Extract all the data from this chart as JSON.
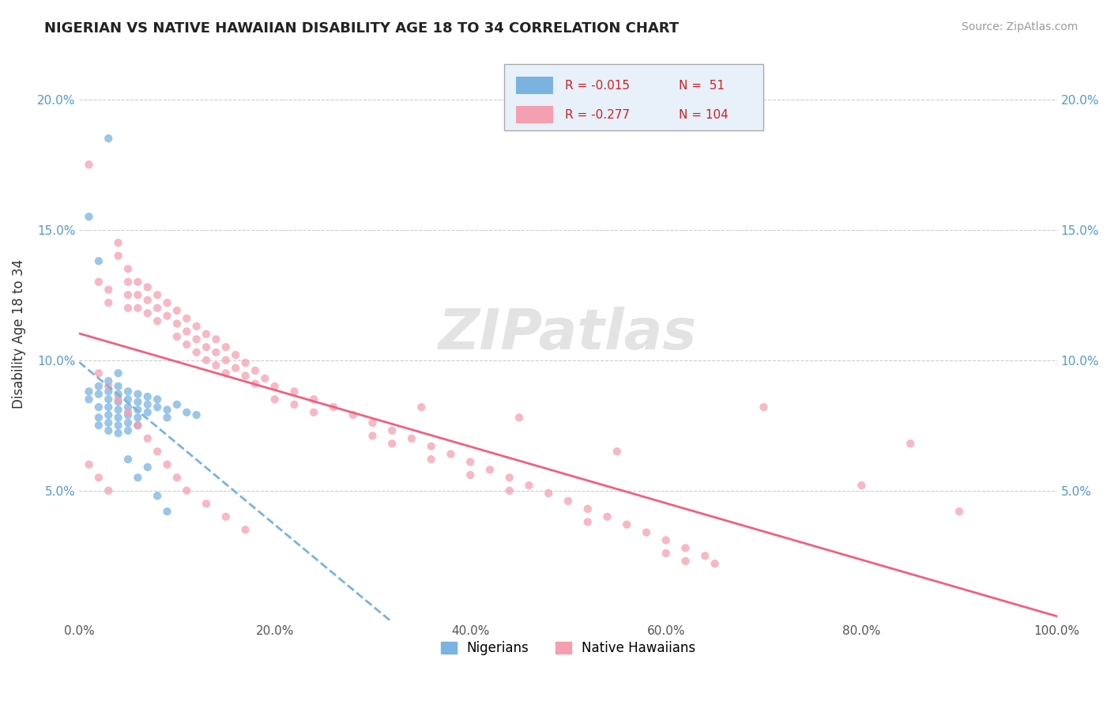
{
  "title": "NIGERIAN VS NATIVE HAWAIIAN DISABILITY AGE 18 TO 34 CORRELATION CHART",
  "source": "Source: ZipAtlas.com",
  "ylabel": "Disability Age 18 to 34",
  "xmin": 0.0,
  "xmax": 1.0,
  "ymin": 0.0,
  "ymax": 0.22,
  "xtick_labels": [
    "0.0%",
    "20.0%",
    "40.0%",
    "60.0%",
    "80.0%",
    "100.0%"
  ],
  "ytick_labels": [
    "5.0%",
    "10.0%",
    "15.0%",
    "20.0%"
  ],
  "nigerian_color": "#7ab3e0",
  "hawaiian_color": "#f4a0b0",
  "hawaiian_line_color": "#f06080",
  "R_nigerian": -0.015,
  "N_nigerian": 51,
  "R_hawaiian": -0.277,
  "N_hawaiian": 104,
  "legend_box_color": "#e8f0fa",
  "nigerian_scatter": [
    [
      0.01,
      0.088
    ],
    [
      0.01,
      0.085
    ],
    [
      0.02,
      0.09
    ],
    [
      0.02,
      0.087
    ],
    [
      0.02,
      0.082
    ],
    [
      0.02,
      0.078
    ],
    [
      0.02,
      0.075
    ],
    [
      0.03,
      0.092
    ],
    [
      0.03,
      0.088
    ],
    [
      0.03,
      0.085
    ],
    [
      0.03,
      0.082
    ],
    [
      0.03,
      0.079
    ],
    [
      0.03,
      0.076
    ],
    [
      0.03,
      0.073
    ],
    [
      0.04,
      0.09
    ],
    [
      0.04,
      0.087
    ],
    [
      0.04,
      0.084
    ],
    [
      0.04,
      0.081
    ],
    [
      0.04,
      0.078
    ],
    [
      0.04,
      0.075
    ],
    [
      0.04,
      0.072
    ],
    [
      0.05,
      0.088
    ],
    [
      0.05,
      0.085
    ],
    [
      0.05,
      0.082
    ],
    [
      0.05,
      0.079
    ],
    [
      0.05,
      0.076
    ],
    [
      0.05,
      0.073
    ],
    [
      0.06,
      0.087
    ],
    [
      0.06,
      0.084
    ],
    [
      0.06,
      0.081
    ],
    [
      0.06,
      0.078
    ],
    [
      0.06,
      0.075
    ],
    [
      0.07,
      0.086
    ],
    [
      0.07,
      0.083
    ],
    [
      0.07,
      0.08
    ],
    [
      0.08,
      0.085
    ],
    [
      0.08,
      0.082
    ],
    [
      0.09,
      0.081
    ],
    [
      0.09,
      0.078
    ],
    [
      0.1,
      0.083
    ],
    [
      0.11,
      0.08
    ],
    [
      0.12,
      0.079
    ],
    [
      0.01,
      0.155
    ],
    [
      0.02,
      0.138
    ],
    [
      0.03,
      0.185
    ],
    [
      0.04,
      0.095
    ],
    [
      0.05,
      0.062
    ],
    [
      0.06,
      0.055
    ],
    [
      0.07,
      0.059
    ],
    [
      0.08,
      0.048
    ],
    [
      0.09,
      0.042
    ]
  ],
  "hawaiian_scatter": [
    [
      0.01,
      0.175
    ],
    [
      0.02,
      0.13
    ],
    [
      0.03,
      0.127
    ],
    [
      0.03,
      0.122
    ],
    [
      0.04,
      0.145
    ],
    [
      0.04,
      0.14
    ],
    [
      0.05,
      0.135
    ],
    [
      0.05,
      0.13
    ],
    [
      0.05,
      0.125
    ],
    [
      0.05,
      0.12
    ],
    [
      0.06,
      0.13
    ],
    [
      0.06,
      0.125
    ],
    [
      0.06,
      0.12
    ],
    [
      0.07,
      0.128
    ],
    [
      0.07,
      0.123
    ],
    [
      0.07,
      0.118
    ],
    [
      0.08,
      0.125
    ],
    [
      0.08,
      0.12
    ],
    [
      0.08,
      0.115
    ],
    [
      0.09,
      0.122
    ],
    [
      0.09,
      0.117
    ],
    [
      0.1,
      0.119
    ],
    [
      0.1,
      0.114
    ],
    [
      0.1,
      0.109
    ],
    [
      0.11,
      0.116
    ],
    [
      0.11,
      0.111
    ],
    [
      0.11,
      0.106
    ],
    [
      0.12,
      0.113
    ],
    [
      0.12,
      0.108
    ],
    [
      0.12,
      0.103
    ],
    [
      0.13,
      0.11
    ],
    [
      0.13,
      0.105
    ],
    [
      0.13,
      0.1
    ],
    [
      0.14,
      0.108
    ],
    [
      0.14,
      0.103
    ],
    [
      0.14,
      0.098
    ],
    [
      0.15,
      0.105
    ],
    [
      0.15,
      0.1
    ],
    [
      0.15,
      0.095
    ],
    [
      0.16,
      0.102
    ],
    [
      0.16,
      0.097
    ],
    [
      0.17,
      0.099
    ],
    [
      0.17,
      0.094
    ],
    [
      0.18,
      0.096
    ],
    [
      0.18,
      0.091
    ],
    [
      0.19,
      0.093
    ],
    [
      0.2,
      0.09
    ],
    [
      0.2,
      0.085
    ],
    [
      0.22,
      0.088
    ],
    [
      0.22,
      0.083
    ],
    [
      0.24,
      0.085
    ],
    [
      0.24,
      0.08
    ],
    [
      0.26,
      0.082
    ],
    [
      0.28,
      0.079
    ],
    [
      0.3,
      0.076
    ],
    [
      0.3,
      0.071
    ],
    [
      0.32,
      0.073
    ],
    [
      0.32,
      0.068
    ],
    [
      0.34,
      0.07
    ],
    [
      0.36,
      0.067
    ],
    [
      0.36,
      0.062
    ],
    [
      0.38,
      0.064
    ],
    [
      0.4,
      0.061
    ],
    [
      0.4,
      0.056
    ],
    [
      0.42,
      0.058
    ],
    [
      0.44,
      0.055
    ],
    [
      0.44,
      0.05
    ],
    [
      0.46,
      0.052
    ],
    [
      0.48,
      0.049
    ],
    [
      0.5,
      0.046
    ],
    [
      0.52,
      0.043
    ],
    [
      0.52,
      0.038
    ],
    [
      0.54,
      0.04
    ],
    [
      0.56,
      0.037
    ],
    [
      0.58,
      0.034
    ],
    [
      0.6,
      0.031
    ],
    [
      0.6,
      0.026
    ],
    [
      0.62,
      0.028
    ],
    [
      0.62,
      0.023
    ],
    [
      0.64,
      0.025
    ],
    [
      0.65,
      0.022
    ],
    [
      0.02,
      0.095
    ],
    [
      0.03,
      0.09
    ],
    [
      0.04,
      0.085
    ],
    [
      0.05,
      0.08
    ],
    [
      0.06,
      0.075
    ],
    [
      0.07,
      0.07
    ],
    [
      0.08,
      0.065
    ],
    [
      0.09,
      0.06
    ],
    [
      0.1,
      0.055
    ],
    [
      0.11,
      0.05
    ],
    [
      0.13,
      0.045
    ],
    [
      0.15,
      0.04
    ],
    [
      0.17,
      0.035
    ],
    [
      0.35,
      0.082
    ],
    [
      0.45,
      0.078
    ],
    [
      0.55,
      0.065
    ],
    [
      0.7,
      0.082
    ],
    [
      0.8,
      0.052
    ],
    [
      0.85,
      0.068
    ],
    [
      0.9,
      0.042
    ],
    [
      0.01,
      0.06
    ],
    [
      0.02,
      0.055
    ],
    [
      0.03,
      0.05
    ]
  ]
}
